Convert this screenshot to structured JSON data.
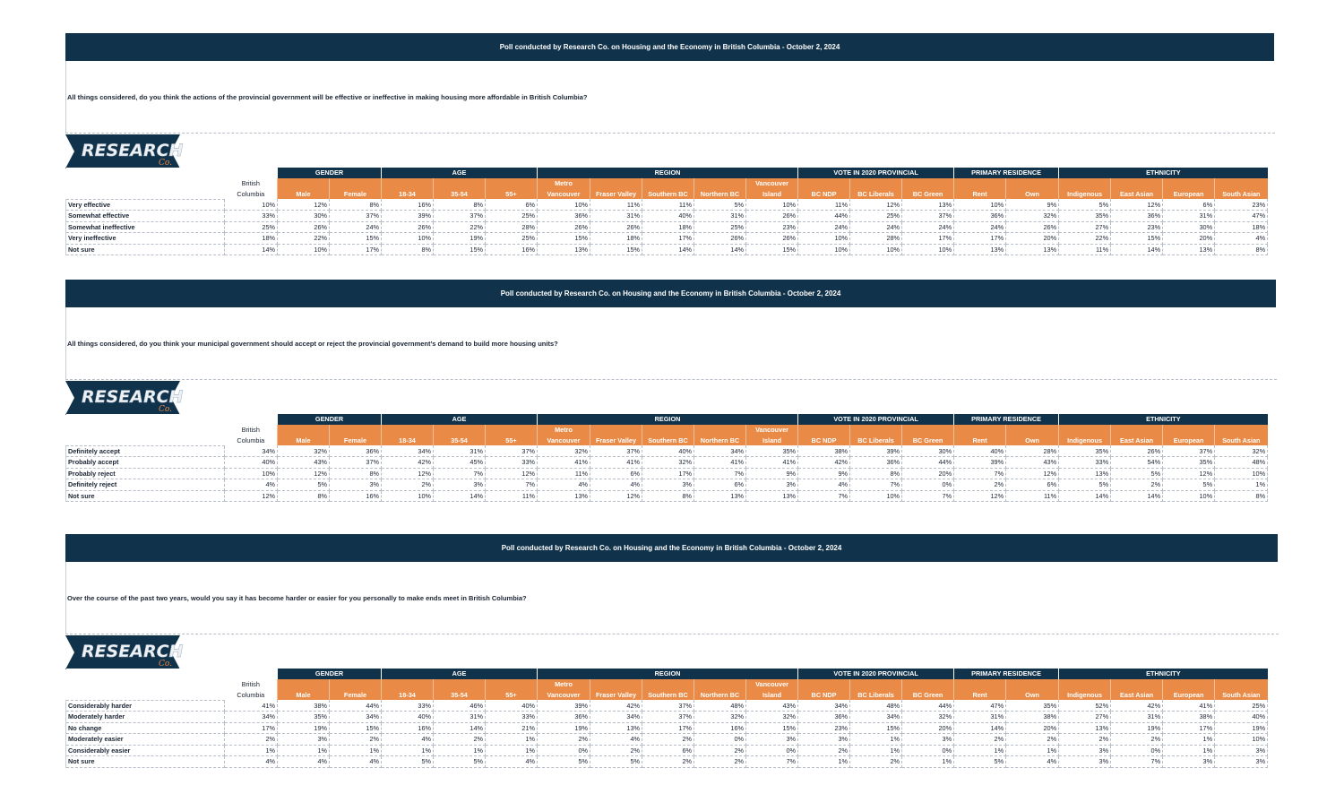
{
  "logo_text": "RESEARCH",
  "logo_sub": "Co.",
  "header_groups": [
    {
      "label": "GENDER",
      "span": 2
    },
    {
      "label": "AGE",
      "span": 3
    },
    {
      "label": "REGION",
      "span": 5
    },
    {
      "label": "VOTE IN 2020 PROVINCIAL",
      "span": 3
    },
    {
      "label": "PRIMARY RESIDENCE",
      "span": 2
    },
    {
      "label": "ETHNICITY",
      "span": 4
    }
  ],
  "bc_column": [
    "British",
    "Columbia"
  ],
  "columns": [
    [
      "",
      "Male"
    ],
    [
      "",
      "Female"
    ],
    [
      "",
      "18-34"
    ],
    [
      "",
      "35-54"
    ],
    [
      "",
      "55+"
    ],
    [
      "Metro",
      "Vancouver"
    ],
    [
      "",
      "Fraser Valley"
    ],
    [
      "",
      "Southern BC"
    ],
    [
      "",
      "Northern BC"
    ],
    [
      "Vancouver",
      "Island"
    ],
    [
      "",
      "BC NDP"
    ],
    [
      "",
      "BC Liberals"
    ],
    [
      "",
      "BC Green"
    ],
    [
      "",
      "Rent"
    ],
    [
      "",
      "Own"
    ],
    [
      "",
      "Indigenous"
    ],
    [
      "",
      "East Asian"
    ],
    [
      "",
      "European"
    ],
    [
      "",
      "South Asian"
    ]
  ],
  "tables": [
    {
      "title": "Poll conducted by Research Co. on Housing and the Economy in British Columbia - October 2, 2024",
      "question": "All things considered, do you think the actions of the provincial government will be effective or ineffective in making housing more affordable in British Columbia?",
      "rows": [
        {
          "label": "Very effective",
          "values": [
            "10%",
            "12%",
            "8%",
            "16%",
            "8%",
            "6%",
            "10%",
            "11%",
            "11%",
            "5%",
            "10%",
            "11%",
            "12%",
            "13%",
            "10%",
            "9%",
            "5%",
            "12%",
            "6%",
            "23%"
          ]
        },
        {
          "label": "Somewhat effective",
          "values": [
            "33%",
            "30%",
            "37%",
            "39%",
            "37%",
            "25%",
            "36%",
            "31%",
            "40%",
            "31%",
            "26%",
            "44%",
            "25%",
            "37%",
            "36%",
            "32%",
            "35%",
            "36%",
            "31%",
            "47%"
          ]
        },
        {
          "label": "Somewhat ineffective",
          "values": [
            "25%",
            "26%",
            "24%",
            "26%",
            "22%",
            "28%",
            "26%",
            "26%",
            "18%",
            "25%",
            "23%",
            "24%",
            "24%",
            "24%",
            "24%",
            "26%",
            "27%",
            "23%",
            "30%",
            "18%"
          ]
        },
        {
          "label": "Very ineffective",
          "values": [
            "18%",
            "22%",
            "15%",
            "10%",
            "19%",
            "25%",
            "15%",
            "18%",
            "17%",
            "26%",
            "26%",
            "10%",
            "28%",
            "17%",
            "17%",
            "20%",
            "22%",
            "15%",
            "20%",
            "4%"
          ]
        },
        {
          "label": "Not sure",
          "values": [
            "14%",
            "10%",
            "17%",
            "8%",
            "15%",
            "16%",
            "13%",
            "15%",
            "14%",
            "14%",
            "15%",
            "10%",
            "10%",
            "10%",
            "13%",
            "13%",
            "11%",
            "14%",
            "13%",
            "8%"
          ]
        }
      ]
    },
    {
      "title": "Poll conducted by Research Co. on Housing and the Economy in British Columbia - October 2, 2024",
      "question": "All things considered, do you think your municipal government should accept or reject the provincial government’s demand to build more housing units?",
      "rows": [
        {
          "label": "Definitely accept",
          "values": [
            "34%",
            "32%",
            "36%",
            "34%",
            "31%",
            "37%",
            "32%",
            "37%",
            "40%",
            "34%",
            "35%",
            "38%",
            "39%",
            "30%",
            "40%",
            "28%",
            "35%",
            "26%",
            "37%",
            "32%"
          ]
        },
        {
          "label": "Probably accept",
          "values": [
            "40%",
            "43%",
            "37%",
            "42%",
            "45%",
            "33%",
            "41%",
            "41%",
            "32%",
            "41%",
            "41%",
            "42%",
            "36%",
            "44%",
            "39%",
            "43%",
            "33%",
            "54%",
            "35%",
            "48%"
          ]
        },
        {
          "label": "Probably reject",
          "values": [
            "10%",
            "12%",
            "8%",
            "12%",
            "7%",
            "12%",
            "11%",
            "6%",
            "17%",
            "7%",
            "9%",
            "9%",
            "8%",
            "20%",
            "7%",
            "12%",
            "13%",
            "5%",
            "12%",
            "10%"
          ]
        },
        {
          "label": "Definitely reject",
          "values": [
            "4%",
            "5%",
            "3%",
            "2%",
            "3%",
            "7%",
            "4%",
            "4%",
            "3%",
            "6%",
            "3%",
            "4%",
            "7%",
            "0%",
            "2%",
            "6%",
            "5%",
            "2%",
            "5%",
            "1%"
          ]
        },
        {
          "label": "Not sure",
          "values": [
            "12%",
            "8%",
            "16%",
            "10%",
            "14%",
            "11%",
            "13%",
            "12%",
            "8%",
            "13%",
            "13%",
            "7%",
            "10%",
            "7%",
            "12%",
            "11%",
            "14%",
            "14%",
            "10%",
            "8%"
          ]
        }
      ]
    },
    {
      "title": "Poll conducted by Research Co. on Housing and the Economy in British Columbia - October 2, 2024",
      "question": "Over the course of the past two years, would you say it has become harder or easier for you personally to make ends meet in British Columbia?",
      "rows": [
        {
          "label": "Considerably harder",
          "values": [
            "41%",
            "38%",
            "44%",
            "33%",
            "46%",
            "40%",
            "39%",
            "42%",
            "37%",
            "48%",
            "43%",
            "34%",
            "48%",
            "44%",
            "47%",
            "35%",
            "52%",
            "42%",
            "41%",
            "25%"
          ]
        },
        {
          "label": "Moderately harder",
          "values": [
            "34%",
            "35%",
            "34%",
            "40%",
            "31%",
            "33%",
            "36%",
            "34%",
            "37%",
            "32%",
            "32%",
            "36%",
            "34%",
            "32%",
            "31%",
            "38%",
            "27%",
            "31%",
            "38%",
            "40%"
          ]
        },
        {
          "label": "No change",
          "values": [
            "17%",
            "19%",
            "15%",
            "16%",
            "14%",
            "21%",
            "19%",
            "13%",
            "17%",
            "16%",
            "15%",
            "23%",
            "15%",
            "20%",
            "14%",
            "20%",
            "13%",
            "19%",
            "17%",
            "19%"
          ]
        },
        {
          "label": "Moderately easier",
          "values": [
            "2%",
            "3%",
            "2%",
            "4%",
            "2%",
            "1%",
            "2%",
            "4%",
            "2%",
            "0%",
            "3%",
            "3%",
            "1%",
            "3%",
            "2%",
            "2%",
            "2%",
            "2%",
            "1%",
            "10%"
          ]
        },
        {
          "label": "Considerably easier",
          "values": [
            "1%",
            "1%",
            "1%",
            "1%",
            "1%",
            "1%",
            "0%",
            "2%",
            "6%",
            "2%",
            "0%",
            "2%",
            "1%",
            "0%",
            "1%",
            "1%",
            "3%",
            "0%",
            "1%",
            "3%"
          ]
        },
        {
          "label": "Not sure",
          "values": [
            "4%",
            "4%",
            "4%",
            "5%",
            "5%",
            "4%",
            "5%",
            "5%",
            "2%",
            "2%",
            "7%",
            "1%",
            "2%",
            "1%",
            "5%",
            "4%",
            "3%",
            "7%",
            "3%",
            "3%"
          ]
        }
      ]
    }
  ]
}
